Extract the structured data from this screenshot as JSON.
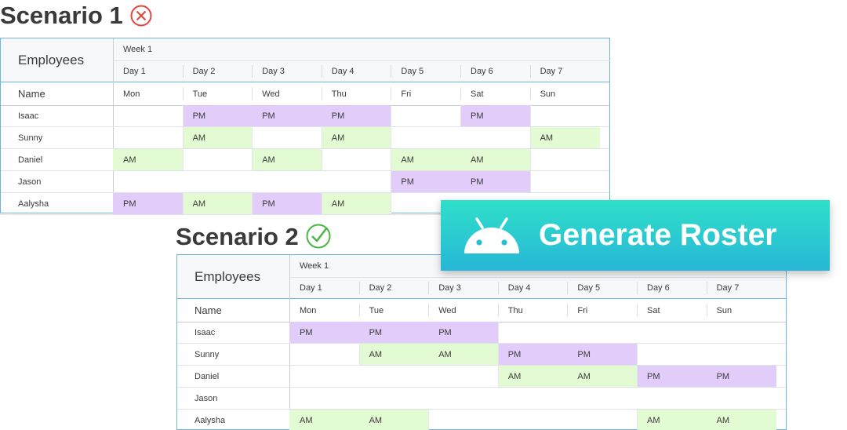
{
  "scenario1": {
    "title": "Scenario 1",
    "status_icon": "cross-circle-icon",
    "status_color": "#e2453a",
    "week_label": "Week 1",
    "employees_header": "Employees",
    "name_header": "Name",
    "days": [
      "Day 1",
      "Day 2",
      "Day 3",
      "Day 4",
      "Day 5",
      "Day 6",
      "Day 7"
    ],
    "weekdays": [
      "Mon",
      "Tue",
      "Wed",
      "Thu",
      "Fri",
      "Sat",
      "Sun"
    ],
    "rows": [
      {
        "name": "Isaac",
        "shifts": [
          "",
          "PM",
          "PM",
          "PM",
          "",
          "PM",
          ""
        ]
      },
      {
        "name": "Sunny",
        "shifts": [
          "",
          "AM",
          "",
          "AM",
          "",
          "",
          "AM"
        ]
      },
      {
        "name": "Daniel",
        "shifts": [
          "AM",
          "",
          "AM",
          "",
          "AM",
          "AM",
          ""
        ]
      },
      {
        "name": "Jason",
        "shifts": [
          "",
          "",
          "",
          "",
          "PM",
          "PM",
          ""
        ]
      },
      {
        "name": "Aalysha",
        "shifts": [
          "PM",
          "AM",
          "PM",
          "AM",
          "",
          "",
          ""
        ]
      }
    ]
  },
  "scenario2": {
    "title": "Scenario 2",
    "status_icon": "check-circle-icon",
    "status_color": "#4bb543",
    "week_label": "Week 1",
    "employees_header": "Employees",
    "name_header": "Name",
    "days": [
      "Day 1",
      "Day 2",
      "Day 3",
      "Day 4",
      "Day 5",
      "Day 6",
      "Day 7"
    ],
    "weekdays": [
      "Mon",
      "Tue",
      "Wed",
      "Thu",
      "Fri",
      "Sat",
      "Sun"
    ],
    "rows": [
      {
        "name": "Isaac",
        "shifts": [
          "PM",
          "PM",
          "PM",
          "",
          "",
          "",
          ""
        ]
      },
      {
        "name": "Sunny",
        "shifts": [
          "",
          "AM",
          "AM",
          "PM",
          "PM",
          "",
          ""
        ]
      },
      {
        "name": "Daniel",
        "shifts": [
          "",
          "",
          "",
          "AM",
          "AM",
          "PM",
          "PM"
        ]
      },
      {
        "name": "Jason",
        "shifts": [
          "",
          "",
          "",
          "",
          "",
          "",
          ""
        ]
      },
      {
        "name": "Aalysha",
        "shifts": [
          "AM",
          "AM",
          "",
          "",
          "",
          "AM",
          "AM"
        ]
      }
    ]
  },
  "generate_button": {
    "label": "Generate Roster",
    "icon": "android-icon",
    "colors": {
      "top": "#2fe0c9",
      "bottom": "#27b6d6"
    }
  },
  "colors": {
    "am": "#e3fbd2",
    "pm": "#e1ccfa",
    "grid_border": "#6fb4dd"
  }
}
